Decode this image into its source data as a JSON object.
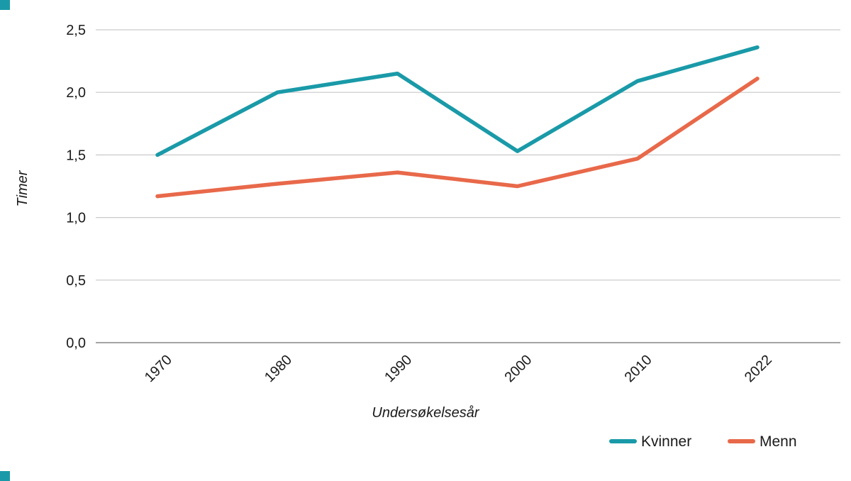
{
  "accent_color": "#1a9aa8",
  "chart_data": {
    "type": "line",
    "xlabel": "Undersøkelsesår",
    "ylabel": "Timer",
    "categories": [
      "1970",
      "1980",
      "1990",
      "2000",
      "2010",
      "2022"
    ],
    "series": [
      {
        "name": "Kvinner",
        "color": "#1a9aa8",
        "values": [
          1.5,
          2.0,
          2.15,
          1.53,
          2.09,
          2.36
        ]
      },
      {
        "name": "Menn",
        "color": "#e8694a",
        "values": [
          1.17,
          1.27,
          1.36,
          1.25,
          1.47,
          2.11
        ]
      }
    ],
    "ylim": [
      0,
      2.5
    ],
    "yticks": [
      {
        "value": 0,
        "label": "0,0"
      },
      {
        "value": 0.5,
        "label": "0,5"
      },
      {
        "value": 1.0,
        "label": "1,0"
      },
      {
        "value": 1.5,
        "label": "1,5"
      },
      {
        "value": 2.0,
        "label": "2,0"
      },
      {
        "value": 2.5,
        "label": "2,5"
      }
    ],
    "grid": "horizontal",
    "legend_position": "bottom-right"
  }
}
